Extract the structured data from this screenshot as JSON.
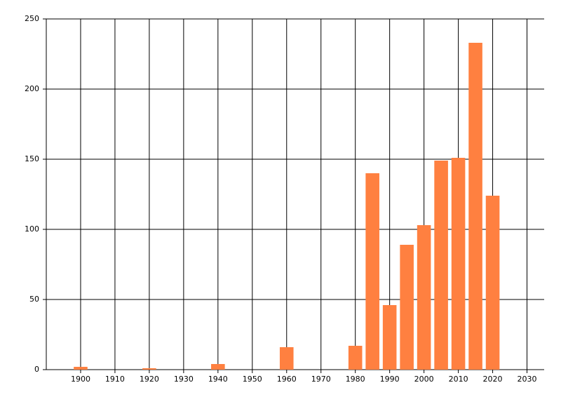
{
  "chart_data": {
    "type": "bar",
    "x": [
      1900,
      1920,
      1940,
      1960,
      1980,
      1985,
      1990,
      1995,
      2000,
      2005,
      2010,
      2015,
      2020
    ],
    "values": [
      2,
      1,
      4,
      16,
      17,
      140,
      46,
      89,
      103,
      149,
      151,
      233,
      124
    ],
    "color": "#ff8040",
    "xlim": [
      1890,
      2035
    ],
    "xticks": [
      1900,
      1910,
      1920,
      1930,
      1940,
      1950,
      1960,
      1970,
      1980,
      1990,
      2000,
      2010,
      2020,
      2030
    ],
    "ylim": [
      0,
      250
    ],
    "yticks": [
      0,
      50,
      100,
      150,
      200,
      250
    ],
    "grid": true
  }
}
